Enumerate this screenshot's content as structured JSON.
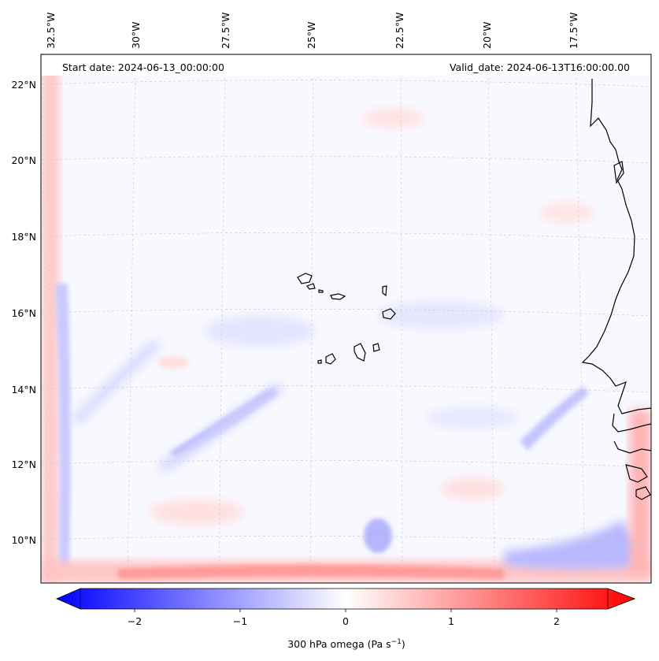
{
  "map": {
    "start_date": "Start date: 2024-06-13_00:00:00",
    "valid_date": "Valid_date: 2024-06-13T16:00:00.00",
    "lon_labels": [
      "32.5°W",
      "30°W",
      "27.5°W",
      "25°W",
      "22.5°W",
      "20°W",
      "17.5°W"
    ],
    "lat_labels": [
      "22°N",
      "20°N",
      "18°N",
      "16°N",
      "14°N",
      "12°N",
      "10°N"
    ]
  },
  "colorbar": {
    "tick_labels": [
      "−2",
      "−1",
      "0",
      "1",
      "2"
    ],
    "label_text": "300 hPa omega (Pa s",
    "label_exp": "−1",
    "label_close": ")",
    "min_color": "#0000ff",
    "mid_color": "#ffffff",
    "max_color": "#ff0000"
  }
}
